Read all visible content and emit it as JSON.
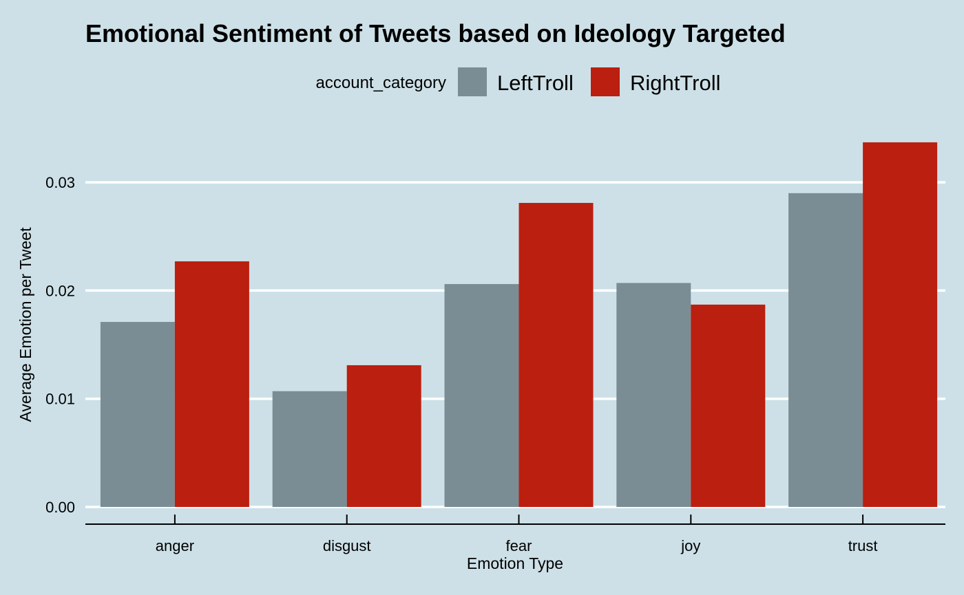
{
  "chart_data": {
    "type": "bar",
    "title": "Emotional Sentiment of Tweets based on Ideology Targeted",
    "xlabel": "Emotion Type",
    "ylabel": "Average Emotion per Tweet",
    "categories": [
      "anger",
      "disgust",
      "fear",
      "joy",
      "trust"
    ],
    "series": [
      {
        "name": "LeftTroll",
        "color": "#7a8d94",
        "values": [
          0.0171,
          0.0107,
          0.0206,
          0.0207,
          0.029
        ]
      },
      {
        "name": "RightTroll",
        "color": "#bb1f10",
        "values": [
          0.0227,
          0.0131,
          0.0281,
          0.0187,
          0.0337
        ]
      }
    ],
    "ylim": [
      0,
      0.035
    ],
    "yticks": [
      0,
      0.01,
      0.02,
      0.03
    ],
    "ytick_labels": [
      "0.00",
      "0.01",
      "0.02",
      "0.03"
    ],
    "legend": {
      "title": "account_category",
      "position": "top"
    },
    "grid": "horizontal",
    "background": "#cde0e7"
  }
}
